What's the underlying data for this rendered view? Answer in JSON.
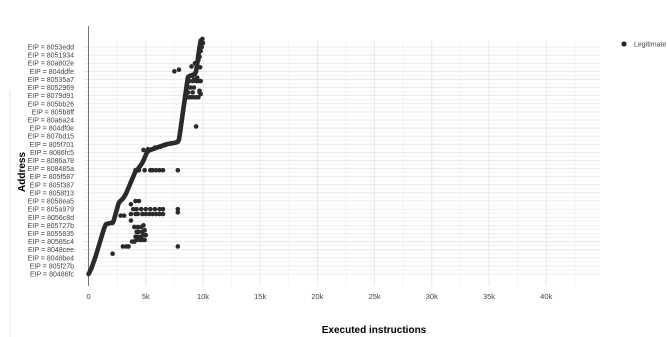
{
  "chart_data": {
    "type": "scatter",
    "xlabel": "Executed instructions",
    "ylabel": "Address",
    "x_ticks": [
      0,
      5000,
      10000,
      15000,
      20000,
      25000,
      30000,
      35000,
      40000
    ],
    "x_tick_labels": [
      "0",
      "5k",
      "10k",
      "15k",
      "20k",
      "25k",
      "30k",
      "35k",
      "40k"
    ],
    "xlim": [
      -400,
      44700
    ],
    "y_categories": [
      "EIP = 80486fc",
      "EIP = 805f27b",
      "EIP = 8048be4",
      "EIP = 8048cee",
      "EIP = 80585c4",
      "EIP = 8055835",
      "EIP = 805727b",
      "EIP = 8056c8d",
      "EIP = 805a979",
      "EIP = 8058ea5",
      "EIP = 8058f13",
      "EIP = 805f387",
      "EIP = 805f587",
      "EIP = 808485a",
      "EIP = 8086a78",
      "EIP = 8086fc5",
      "EIP = 805f701",
      "EIP = 807bd15",
      "EIP = 804df0e",
      "EIP = 80a6a24",
      "EIP = 805b8ff",
      "EIP = 805bb26",
      "EIP = 8079d91",
      "EIP = 8052969",
      "EIP = 80535a7",
      "EIP = 804ddfe",
      "EIP = 80a802e",
      "EIP = 8051934",
      "EIP = 8053edd"
    ],
    "grid": true,
    "legend_position": "top-right",
    "series": [
      {
        "name": "Legitimate",
        "color": "#2b2b2b",
        "trace": [
          [
            0,
            0
          ],
          [
            150,
            0.4
          ],
          [
            300,
            0.9
          ],
          [
            450,
            1.5
          ],
          [
            600,
            2.1
          ],
          [
            750,
            2.8
          ],
          [
            900,
            3.5
          ],
          [
            1050,
            4.2
          ],
          [
            1200,
            4.9
          ],
          [
            1350,
            5.6
          ],
          [
            1500,
            6.1
          ],
          [
            1650,
            6.2
          ],
          [
            1800,
            6.25
          ],
          [
            1950,
            6.3
          ],
          [
            2100,
            6.3
          ],
          [
            2200,
            6.6
          ],
          [
            2300,
            7.1
          ],
          [
            2400,
            7.6
          ],
          [
            2500,
            8.1
          ],
          [
            2600,
            8.6
          ],
          [
            2700,
            8.9
          ],
          [
            2850,
            9.1
          ],
          [
            3000,
            9.3
          ],
          [
            3150,
            9.6
          ],
          [
            3300,
            10
          ],
          [
            3450,
            10.5
          ],
          [
            3600,
            11
          ],
          [
            3750,
            11.5
          ],
          [
            3900,
            12
          ],
          [
            4050,
            12.5
          ],
          [
            4200,
            12.8
          ],
          [
            4350,
            13.0
          ],
          [
            4500,
            13.3
          ],
          [
            4650,
            13.6
          ],
          [
            4800,
            14
          ],
          [
            4950,
            14.5
          ],
          [
            5100,
            15
          ],
          [
            5250,
            15.2
          ],
          [
            5400,
            15.3
          ],
          [
            5600,
            15.4
          ],
          [
            5800,
            15.5
          ],
          [
            6000,
            15.6
          ],
          [
            6200,
            15.7
          ],
          [
            6400,
            15.8
          ],
          [
            6600,
            15.9
          ],
          [
            6800,
            16
          ],
          [
            7000,
            16.05
          ],
          [
            7200,
            16.1
          ],
          [
            7400,
            16.15
          ],
          [
            7600,
            16.2
          ],
          [
            7800,
            16.3
          ],
          [
            7900,
            16.6
          ],
          [
            7950,
            17
          ],
          [
            8000,
            17.5
          ],
          [
            8050,
            18
          ],
          [
            8100,
            18.5
          ],
          [
            8150,
            19
          ],
          [
            8200,
            19.5
          ],
          [
            8250,
            20
          ],
          [
            8300,
            20.5
          ],
          [
            8350,
            21
          ],
          [
            8400,
            21.5
          ],
          [
            8450,
            22
          ],
          [
            8500,
            22.5
          ],
          [
            8550,
            23
          ],
          [
            8600,
            23.5
          ],
          [
            8650,
            24
          ],
          [
            8700,
            24.3
          ],
          [
            8800,
            24.4
          ],
          [
            8900,
            24.45
          ],
          [
            9000,
            24.5
          ],
          [
            9100,
            24.55
          ],
          [
            9200,
            24.6
          ],
          [
            9300,
            24.7
          ],
          [
            9400,
            25
          ],
          [
            9450,
            25.5
          ],
          [
            9500,
            26
          ],
          [
            9550,
            26.5
          ],
          [
            9600,
            27
          ],
          [
            9650,
            27.5
          ],
          [
            9700,
            28
          ],
          [
            9750,
            28.4
          ],
          [
            9800,
            28.8
          ]
        ],
        "points": [
          [
            2100,
            2.5
          ],
          [
            3000,
            3.4
          ],
          [
            3300,
            3.4
          ],
          [
            3500,
            3.4
          ],
          [
            7800,
            3.4
          ],
          [
            3800,
            4.0
          ],
          [
            4000,
            4.0
          ],
          [
            4200,
            4.2
          ],
          [
            4500,
            4.2
          ],
          [
            4700,
            4.2
          ],
          [
            4900,
            4.2
          ],
          [
            4100,
            4.6
          ],
          [
            4300,
            4.6
          ],
          [
            4600,
            4.6
          ],
          [
            4800,
            4.8
          ],
          [
            5000,
            4.8
          ],
          [
            4200,
            5.2
          ],
          [
            4400,
            5.2
          ],
          [
            4700,
            5.2
          ],
          [
            4900,
            5.4
          ],
          [
            4000,
            5.8
          ],
          [
            4300,
            5.8
          ],
          [
            4600,
            5.8
          ],
          [
            4800,
            6.0
          ],
          [
            2800,
            7.2
          ],
          [
            3100,
            7.2
          ],
          [
            3700,
            6.6
          ],
          [
            3700,
            7.4
          ],
          [
            4100,
            7.4
          ],
          [
            4300,
            7.4
          ],
          [
            4700,
            7.4
          ],
          [
            5000,
            7.4
          ],
          [
            5300,
            7.4
          ],
          [
            5600,
            7.4
          ],
          [
            5900,
            7.4
          ],
          [
            6200,
            7.4
          ],
          [
            6500,
            7.4
          ],
          [
            7800,
            7.6
          ],
          [
            3900,
            8.0
          ],
          [
            4200,
            8.0
          ],
          [
            4600,
            8.0
          ],
          [
            5000,
            8.0
          ],
          [
            5400,
            8.0
          ],
          [
            5800,
            8.0
          ],
          [
            6200,
            8.0
          ],
          [
            6500,
            8.0
          ],
          [
            7800,
            8.0
          ],
          [
            3700,
            8.6
          ],
          [
            4100,
            9.0
          ],
          [
            4400,
            9.0
          ],
          [
            4100,
            12.8
          ],
          [
            4400,
            12.8
          ],
          [
            4900,
            12.8
          ],
          [
            5400,
            12.8
          ],
          [
            5600,
            12.8
          ],
          [
            5900,
            12.8
          ],
          [
            6200,
            12.8
          ],
          [
            6500,
            12.8
          ],
          [
            7800,
            12.8
          ],
          [
            4800,
            15.3
          ],
          [
            5200,
            15.4
          ],
          [
            5800,
            15.6
          ],
          [
            6300,
            15.7
          ],
          [
            6700,
            15.9
          ],
          [
            7200,
            16.1
          ],
          [
            9400,
            18.2
          ],
          [
            8600,
            21.8
          ],
          [
            8800,
            21.8
          ],
          [
            9000,
            21.8
          ],
          [
            9200,
            21.8
          ],
          [
            9400,
            21.8
          ],
          [
            9600,
            21.8
          ],
          [
            8700,
            22.4
          ],
          [
            9100,
            22.4
          ],
          [
            9700,
            22.4
          ],
          [
            8600,
            23.0
          ],
          [
            8900,
            23.0
          ],
          [
            9200,
            23.0
          ],
          [
            9700,
            22.6
          ],
          [
            9800,
            22.2
          ],
          [
            8800,
            23.8
          ],
          [
            9100,
            23.8
          ],
          [
            9400,
            23.8
          ],
          [
            9600,
            23.8
          ],
          [
            9800,
            23.8
          ],
          [
            9200,
            24.0
          ],
          [
            9500,
            24.2
          ],
          [
            7500,
            25.0
          ],
          [
            7900,
            25.2
          ],
          [
            9000,
            25.6
          ],
          [
            9300,
            26.0
          ],
          [
            9600,
            26.4
          ],
          [
            9700,
            26.8
          ],
          [
            9800,
            27.5
          ],
          [
            9900,
            28.0
          ],
          [
            10000,
            28.5
          ],
          [
            9950,
            29.0
          ],
          [
            9750,
            25.5
          ]
        ]
      }
    ]
  }
}
